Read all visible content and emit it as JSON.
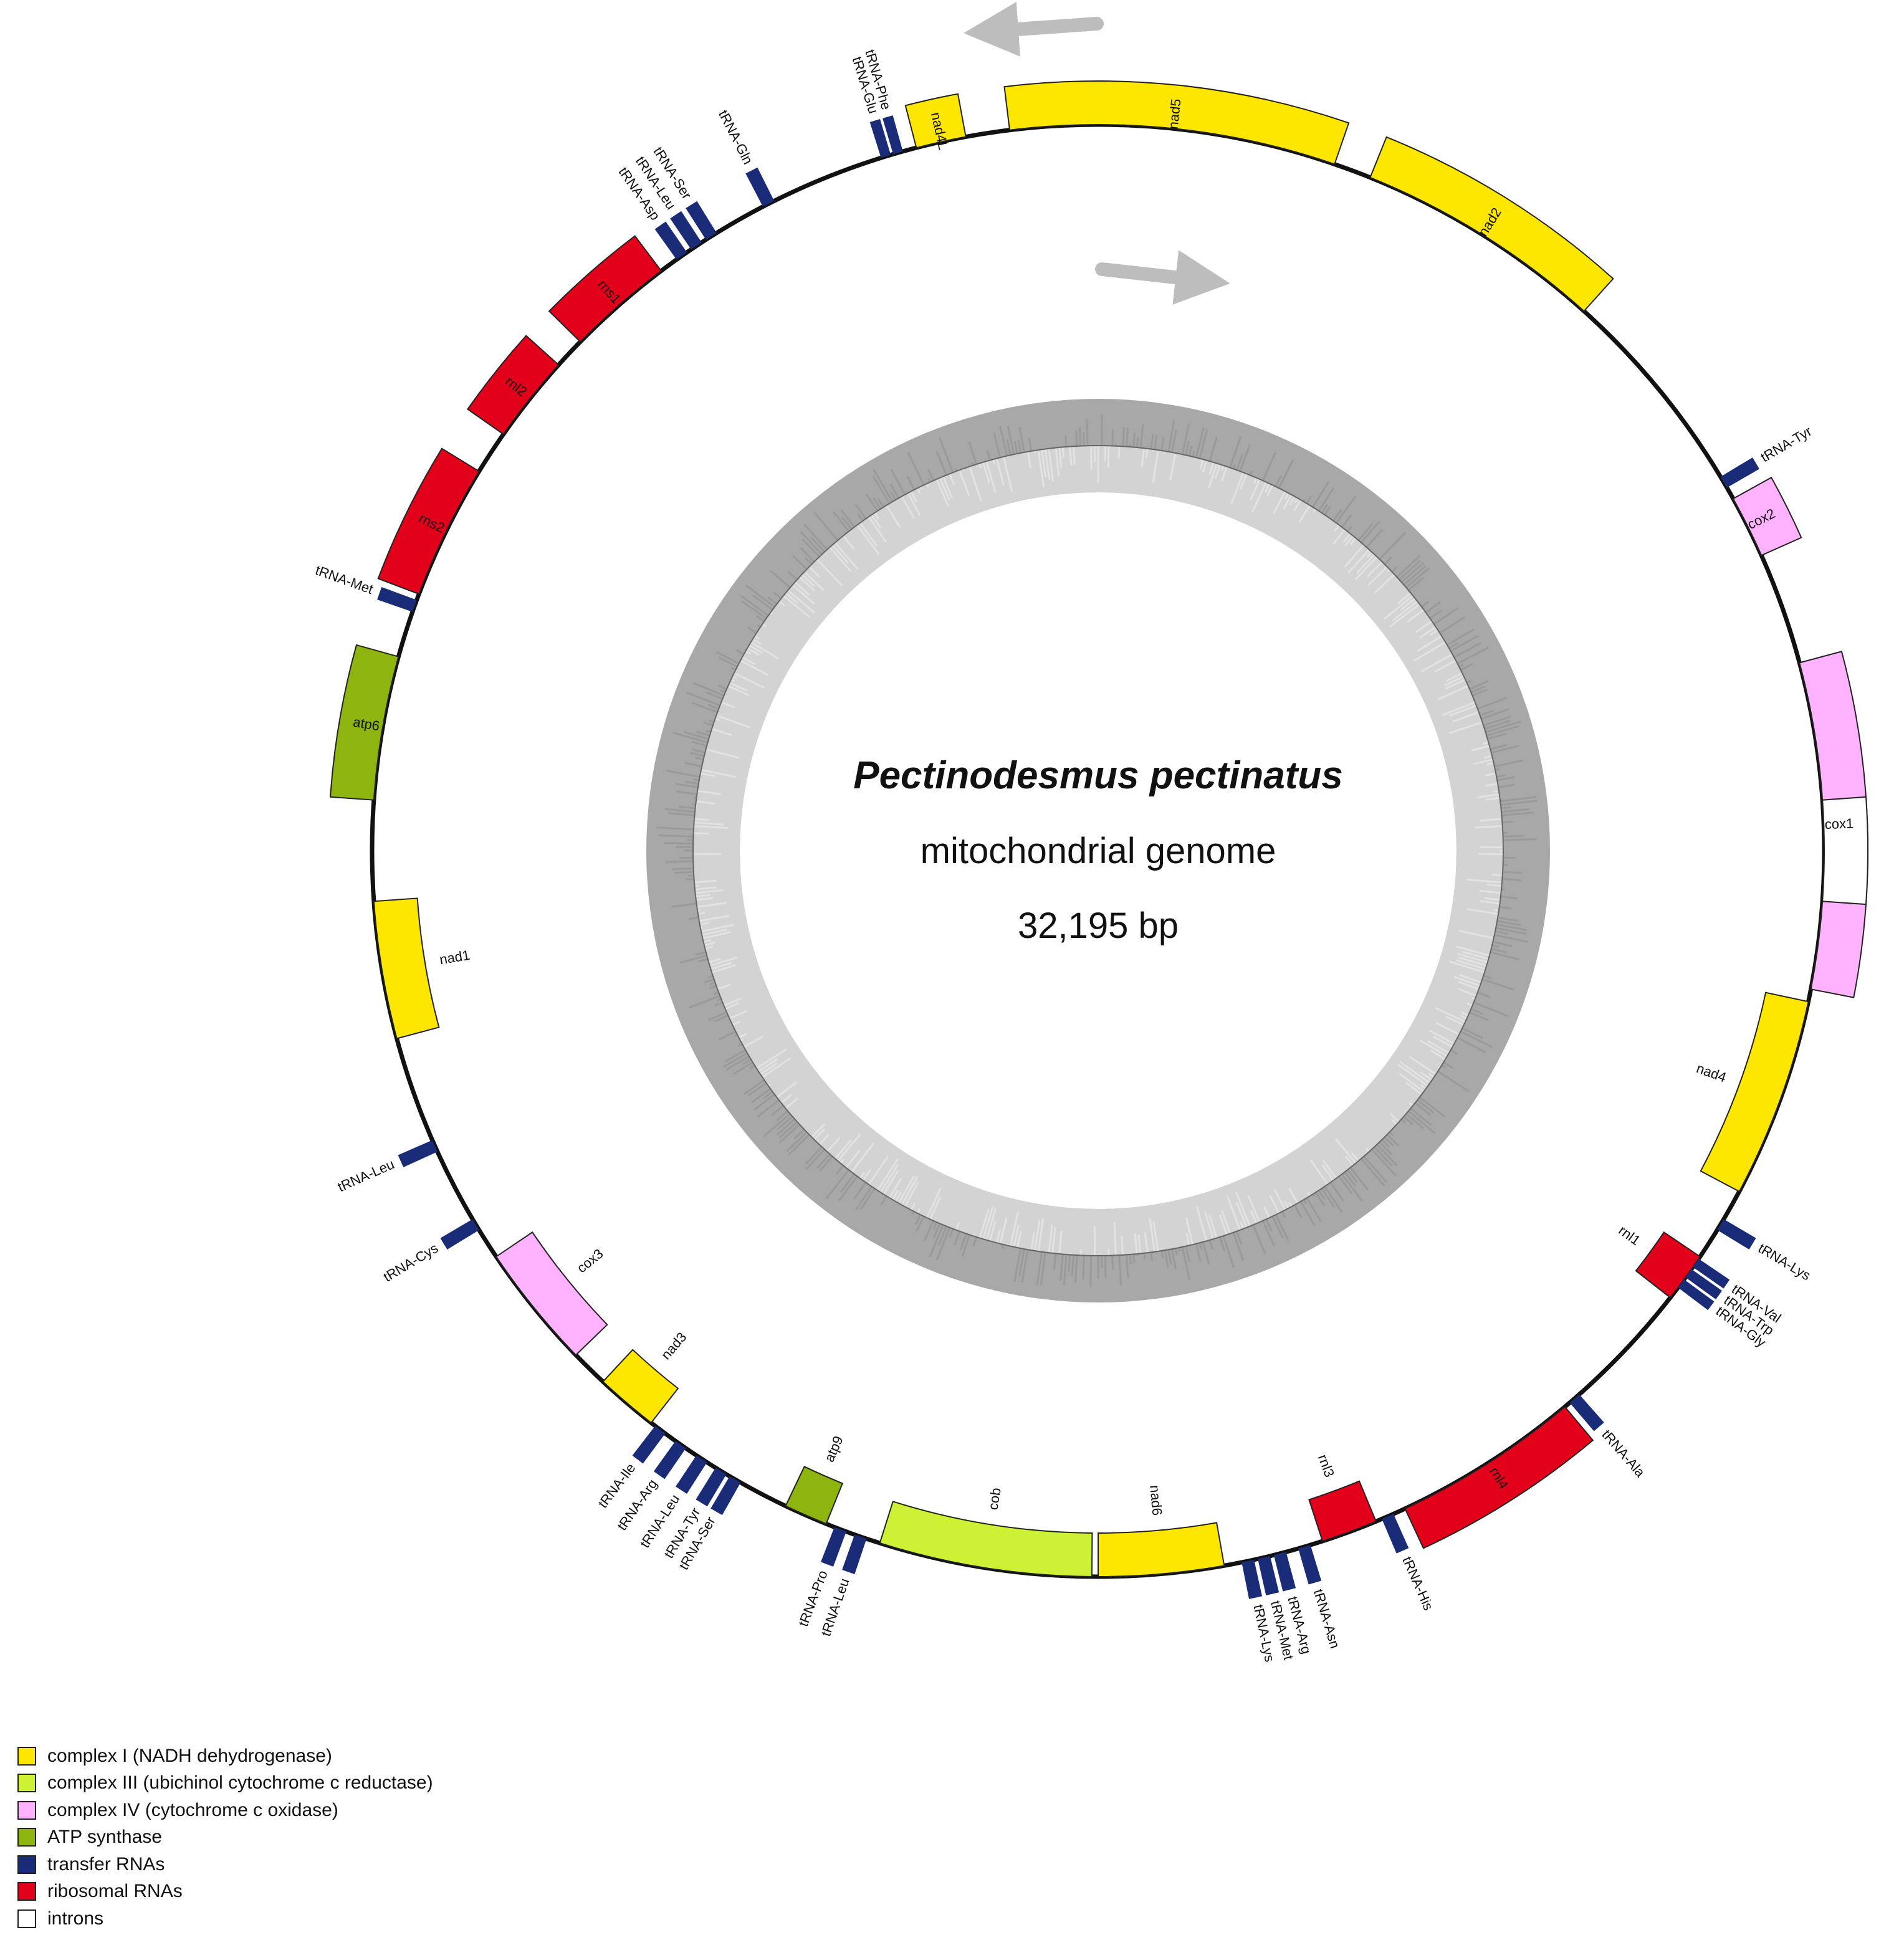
{
  "title": "Pectinodesmus pectinatus",
  "subtitle": "mitochondrial genome",
  "size_label": "32,195 bp",
  "colors": {
    "complex_I": "#fde700",
    "complex_III": "#cdf235",
    "complex_IV": "#ffb3ff",
    "atp": "#8db40f",
    "trna": "#1a2c78",
    "rrna": "#e2001a",
    "intron": "#ffffff",
    "gc_outer": "#a8a8a8",
    "gc_inner": "#d3d3d3",
    "arrow": "#bdbdbd"
  },
  "legend": [
    {
      "label": "complex I (NADH dehydrogenase)",
      "category": "complex_I"
    },
    {
      "label": "complex III (ubichinol cytochrome c reductase)",
      "category": "complex_III"
    },
    {
      "label": "complex IV (cytochrome c oxidase)",
      "category": "complex_IV"
    },
    {
      "label": "ATP synthase",
      "category": "atp"
    },
    {
      "label": "transfer RNAs",
      "category": "trna"
    },
    {
      "label": "ribosomal RNAs",
      "category": "rrna"
    },
    {
      "label": "introns",
      "category": "intron"
    }
  ],
  "genes": [
    {
      "name": "nad5",
      "category": "complex_I",
      "start": 353,
      "end": 19,
      "strand": "outer"
    },
    {
      "name": "nad2",
      "category": "complex_I",
      "start": 22,
      "end": 42,
      "strand": "outer"
    },
    {
      "name": "tRNA-Tyr",
      "category": "trna",
      "start": 59,
      "end": 60,
      "strand": "outer"
    },
    {
      "name": "cox2",
      "category": "complex_IV",
      "start": 61,
      "end": 66,
      "strand": "outer"
    },
    {
      "name": "cox1",
      "category": "complex_IV",
      "start": 75,
      "end": 101,
      "strand": "outer",
      "introns": [
        [
          86,
          94
        ]
      ]
    },
    {
      "name": "nad4",
      "category": "complex_I",
      "start": 102,
      "end": 118,
      "strand": "inner"
    },
    {
      "name": "tRNA-Lys",
      "category": "trna",
      "start": 120.5,
      "end": 121.5,
      "strand": "outer"
    },
    {
      "name": "rnl1",
      "category": "rrna",
      "start": 124,
      "end": 128,
      "strand": "inner"
    },
    {
      "name": "tRNA-Val",
      "category": "trna",
      "start": 124.2,
      "end": 125,
      "strand": "outer"
    },
    {
      "name": "tRNA-Trp",
      "category": "trna",
      "start": 125.2,
      "end": 126,
      "strand": "outer"
    },
    {
      "name": "tRNA-Gly",
      "category": "trna",
      "start": 126.2,
      "end": 127,
      "strand": "outer"
    },
    {
      "name": "tRNA-Ala",
      "category": "trna",
      "start": 138.5,
      "end": 139.5,
      "strand": "outer"
    },
    {
      "name": "rnl4",
      "category": "rrna",
      "start": 140,
      "end": 155,
      "strand": "outer"
    },
    {
      "name": "tRNA-His",
      "category": "trna",
      "start": 156,
      "end": 157,
      "strand": "outer"
    },
    {
      "name": "rnl3",
      "category": "rrna",
      "start": 157.5,
      "end": 162,
      "strand": "inner"
    },
    {
      "name": "tRNA-Asn",
      "category": "trna",
      "start": 163,
      "end": 164,
      "strand": "outer"
    },
    {
      "name": "tRNA-Arg",
      "category": "trna",
      "start": 165,
      "end": 166,
      "strand": "outer"
    },
    {
      "name": "tRNA-Met",
      "category": "trna",
      "start": 166.3,
      "end": 167.3,
      "strand": "outer"
    },
    {
      "name": "tRNA-Lys",
      "category": "trna",
      "start": 167.6,
      "end": 168.6,
      "strand": "outer"
    },
    {
      "name": "nad6",
      "category": "complex_I",
      "start": 170,
      "end": 180,
      "strand": "inner"
    },
    {
      "name": "cob",
      "category": "complex_III",
      "start": 180.5,
      "end": 197.5,
      "strand": "inner"
    },
    {
      "name": "tRNA-Leu",
      "category": "trna",
      "start": 198.6,
      "end": 199.6,
      "strand": "outer"
    },
    {
      "name": "tRNA-Pro",
      "category": "trna",
      "start": 200.3,
      "end": 201.3,
      "strand": "outer"
    },
    {
      "name": "atp9",
      "category": "atp",
      "start": 202,
      "end": 205.5,
      "strand": "inner"
    },
    {
      "name": "tRNA-Ser",
      "category": "trna",
      "start": 209.5,
      "end": 210.5,
      "strand": "outer"
    },
    {
      "name": "tRNA-Tyr",
      "category": "trna",
      "start": 210.8,
      "end": 211.8,
      "strand": "outer"
    },
    {
      "name": "tRNA-Leu",
      "category": "trna",
      "start": 212.6,
      "end": 213.6,
      "strand": "outer"
    },
    {
      "name": "tRNA-Arg",
      "category": "trna",
      "start": 214.6,
      "end": 215.6,
      "strand": "outer"
    },
    {
      "name": "tRNA-Ile",
      "category": "trna",
      "start": 216.6,
      "end": 217.6,
      "strand": "outer"
    },
    {
      "name": "nad3",
      "category": "complex_I",
      "start": 218,
      "end": 223,
      "strand": "inner"
    },
    {
      "name": "cox3",
      "category": "complex_IV",
      "start": 226,
      "end": 236,
      "strand": "inner"
    },
    {
      "name": "tRNA-Cys",
      "category": "trna",
      "start": 238.5,
      "end": 239.5,
      "strand": "outer"
    },
    {
      "name": "tRNA-Leu",
      "category": "trna",
      "start": 245.5,
      "end": 246.5,
      "strand": "outer"
    },
    {
      "name": "nad1",
      "category": "complex_I",
      "start": 255,
      "end": 266,
      "strand": "inner"
    },
    {
      "name": "atp6",
      "category": "atp",
      "start": 274,
      "end": 285.5,
      "strand": "outer"
    },
    {
      "name": "tRNA-Met",
      "category": "trna",
      "start": 289.2,
      "end": 290.2,
      "strand": "outer"
    },
    {
      "name": "rns2",
      "category": "rrna",
      "start": 290.7,
      "end": 301.5,
      "strand": "outer"
    },
    {
      "name": "rnl2",
      "category": "rrna",
      "start": 305,
      "end": 312,
      "strand": "outer"
    },
    {
      "name": "rns1",
      "category": "rrna",
      "start": 314.5,
      "end": 323,
      "strand": "outer"
    },
    {
      "name": "tRNA-Asp",
      "category": "trna",
      "start": 324.5,
      "end": 325.5,
      "strand": "outer"
    },
    {
      "name": "tRNA-Leu",
      "category": "trna",
      "start": 325.9,
      "end": 326.9,
      "strand": "outer"
    },
    {
      "name": "tRNA-Ser",
      "category": "trna",
      "start": 327.3,
      "end": 328.3,
      "strand": "outer"
    },
    {
      "name": "tRNA-Gln",
      "category": "trna",
      "start": 332.5,
      "end": 333.5,
      "strand": "outer"
    },
    {
      "name": "tRNA-Glu",
      "category": "trna",
      "start": 342.6,
      "end": 343.4,
      "strand": "outer"
    },
    {
      "name": "tRNA-Phe",
      "category": "trna",
      "start": 343.6,
      "end": 344.4,
      "strand": "outer"
    },
    {
      "name": "nad4L",
      "category": "complex_I",
      "start": 345.5,
      "end": 349.5,
      "strand": "outer"
    }
  ]
}
